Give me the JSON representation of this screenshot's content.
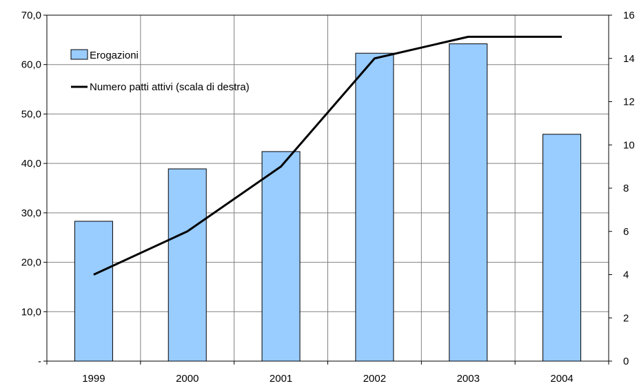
{
  "chart_data": {
    "type": "bar",
    "categories": [
      "1999",
      "2000",
      "2001",
      "2002",
      "2003",
      "2004"
    ],
    "series": [
      {
        "name": "Erogazioni",
        "type": "bar",
        "axis": "left",
        "color": "#99ccff",
        "values": [
          28.3,
          38.9,
          42.4,
          62.3,
          64.2,
          45.9
        ]
      },
      {
        "name": "Numero patti attivi (scala di destra)",
        "type": "line",
        "axis": "right",
        "color": "#000000",
        "values": [
          4,
          6,
          9,
          14,
          15,
          15
        ]
      }
    ],
    "y_left": {
      "ylim": [
        0,
        70
      ],
      "ticks": [
        0,
        10,
        20,
        30,
        40,
        50,
        60,
        70
      ],
      "tick_labels": [
        "-",
        "10,0",
        "20,0",
        "30,0",
        "40,0",
        "50,0",
        "60,0",
        "70,0"
      ]
    },
    "y_right": {
      "ylim": [
        0,
        16
      ],
      "ticks": [
        0,
        2,
        4,
        6,
        8,
        10,
        12,
        14,
        16
      ],
      "tick_labels": [
        "0",
        "2",
        "4",
        "6",
        "8",
        "10",
        "12",
        "14",
        "16"
      ]
    },
    "grid": true,
    "legend_position": "top-left"
  }
}
